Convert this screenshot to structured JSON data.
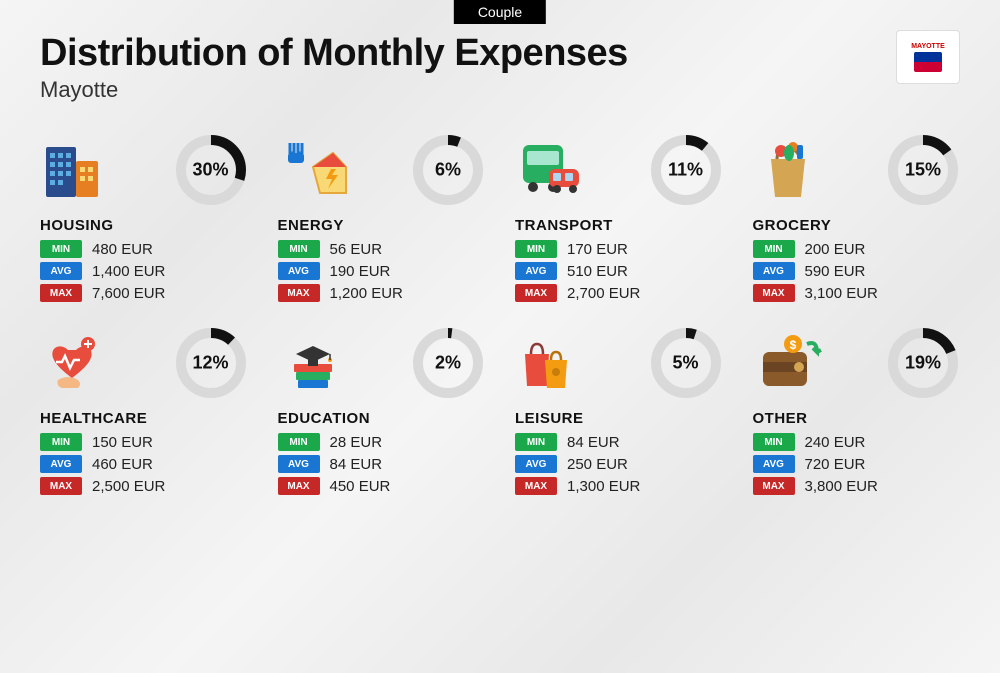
{
  "top_tag": "Couple",
  "title": "Distribution of Monthly Expenses",
  "subtitle": "Mayotte",
  "flag_label": "MAYOTTE",
  "labels": {
    "min": "MIN",
    "avg": "AVG",
    "max": "MAX"
  },
  "currency": "EUR",
  "donut": {
    "track_color": "#d9d9d9",
    "fill_color": "#111111",
    "radius": 30,
    "stroke_width": 10
  },
  "badge_colors": {
    "min": "#1ba84a",
    "avg": "#1976d2",
    "max": "#c62828"
  },
  "categories": [
    {
      "key": "housing",
      "name": "HOUSING",
      "percent": 30,
      "min": "480",
      "avg": "1,400",
      "max": "7,600"
    },
    {
      "key": "energy",
      "name": "ENERGY",
      "percent": 6,
      "min": "56",
      "avg": "190",
      "max": "1,200"
    },
    {
      "key": "transport",
      "name": "TRANSPORT",
      "percent": 11,
      "min": "170",
      "avg": "510",
      "max": "2,700"
    },
    {
      "key": "grocery",
      "name": "GROCERY",
      "percent": 15,
      "min": "200",
      "avg": "590",
      "max": "3,100"
    },
    {
      "key": "healthcare",
      "name": "HEALTHCARE",
      "percent": 12,
      "min": "150",
      "avg": "460",
      "max": "2,500"
    },
    {
      "key": "education",
      "name": "EDUCATION",
      "percent": 2,
      "min": "28",
      "avg": "84",
      "max": "450"
    },
    {
      "key": "leisure",
      "name": "LEISURE",
      "percent": 5,
      "min": "84",
      "avg": "250",
      "max": "1,300"
    },
    {
      "key": "other",
      "name": "OTHER",
      "percent": 19,
      "min": "240",
      "avg": "720",
      "max": "3,800"
    }
  ],
  "icons": {
    "housing": "buildings-icon",
    "energy": "house-energy-icon",
    "transport": "bus-car-icon",
    "grocery": "grocery-bag-icon",
    "healthcare": "heart-hand-icon",
    "education": "books-cap-icon",
    "leisure": "shopping-bags-icon",
    "other": "wallet-icon"
  }
}
